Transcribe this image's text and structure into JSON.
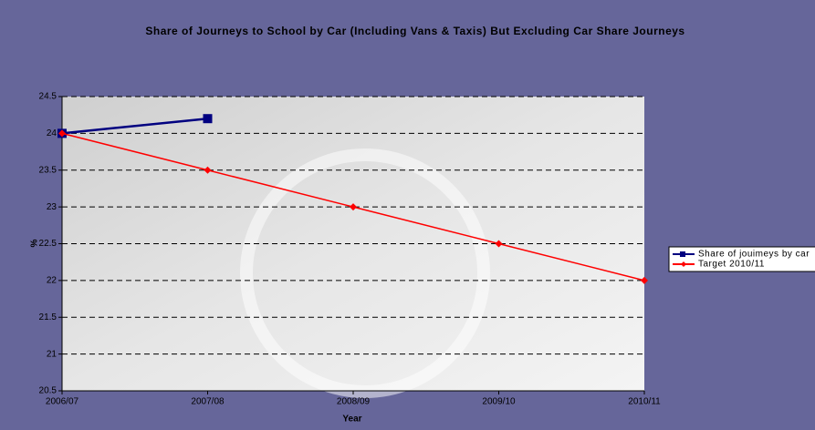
{
  "chart_data": {
    "type": "line",
    "title": "Share of Journeys to School by Car (Including Vans & Taxis) But Excluding Car Share Journeys",
    "x_label": "Year",
    "y_label": "%",
    "categories": [
      "2006/07",
      "2007/08",
      "2008/09",
      "2009/10",
      "2010/11"
    ],
    "series": [
      {
        "name": "Share of jouimeys by car",
        "color": "#000080",
        "values": [
          24,
          24.2,
          null,
          null,
          null
        ]
      },
      {
        "name": "Target 2010/11",
        "color": "#ff0000",
        "values": [
          24,
          23.5,
          23,
          22.5,
          22
        ]
      }
    ],
    "ylim": [
      20.5,
      24.5
    ],
    "yticks": [
      20.5,
      21,
      21.5,
      22,
      22.5,
      23,
      23.5,
      24,
      24.5
    ],
    "grid": true,
    "legend": "right"
  }
}
